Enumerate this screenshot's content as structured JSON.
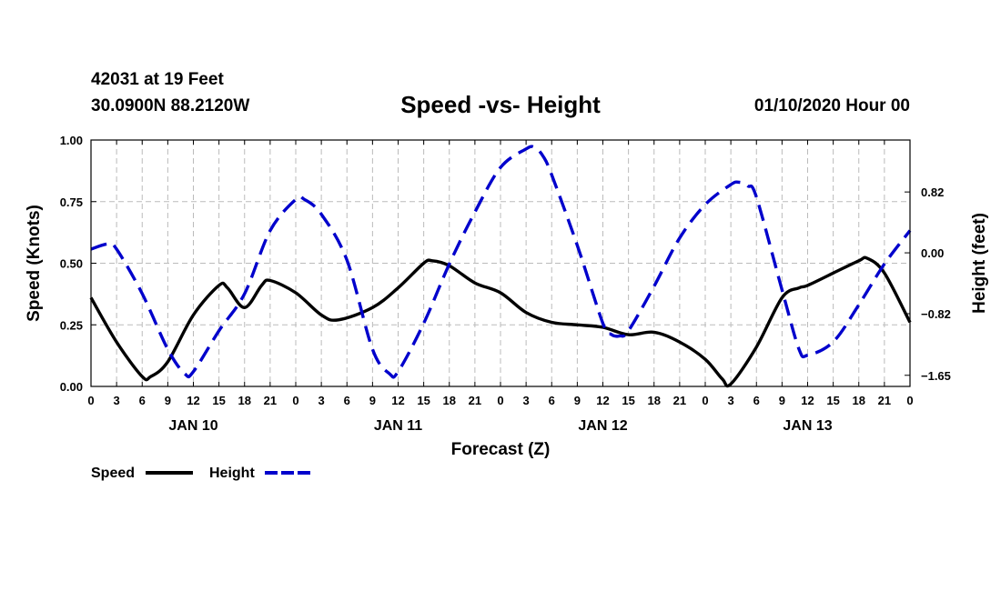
{
  "header": {
    "station": "42031 at 19 Feet",
    "coords": "30.0900N 88.2120W",
    "title": "Speed -vs- Height",
    "date": "01/10/2020 Hour 00"
  },
  "chart_data": {
    "type": "line",
    "title": "Speed -vs- Height",
    "xlabel": "Forecast (Z)",
    "ylabel": "Speed (Knots)",
    "y2label": "Height (feet)",
    "xlim": [
      0,
      96
    ],
    "ylim": [
      0,
      1
    ],
    "y2lim": [
      -1.8,
      1.52
    ],
    "grid": true,
    "x_tick_labels": [
      "0",
      "3",
      "6",
      "9",
      "12",
      "15",
      "18",
      "21",
      "0",
      "3",
      "6",
      "9",
      "12",
      "15",
      "18",
      "21",
      "0",
      "3",
      "6",
      "9",
      "12",
      "15",
      "18",
      "21",
      "0",
      "3",
      "6",
      "9",
      "12",
      "15",
      "18",
      "21",
      "0"
    ],
    "day_labels": [
      {
        "hour": 12,
        "label": "JAN 10"
      },
      {
        "hour": 36,
        "label": "JAN 11"
      },
      {
        "hour": 60,
        "label": "JAN 12"
      },
      {
        "hour": 84,
        "label": "JAN 13"
      }
    ],
    "y_ticks": [
      {
        "value": 0,
        "label": "0.00"
      },
      {
        "value": 0.25,
        "label": "0.25"
      },
      {
        "value": 0.5,
        "label": "0.50"
      },
      {
        "value": 0.75,
        "label": "0.75"
      },
      {
        "value": 1,
        "label": "1.00"
      }
    ],
    "y2_ticks": [
      {
        "value": 0.82,
        "label": "0.82"
      },
      {
        "value": 0,
        "label": "0.00"
      },
      {
        "value": -0.82,
        "label": "−0.82"
      },
      {
        "value": -1.65,
        "label": "−1.65"
      }
    ],
    "series": [
      {
        "name": "Speed",
        "axis": "left",
        "color": "#000000",
        "dash": "solid",
        "x": [
          0,
          3,
          6,
          7,
          9,
          12,
          15,
          16,
          18,
          20,
          21,
          24,
          27,
          29,
          33,
          36,
          39,
          40,
          42,
          45,
          48,
          51,
          54,
          57,
          60,
          63,
          66,
          69,
          72,
          74,
          75,
          78,
          81,
          83,
          84,
          87,
          90,
          91,
          93,
          96
        ],
        "y": [
          0.36,
          0.18,
          0.04,
          0.04,
          0.1,
          0.29,
          0.41,
          0.4,
          0.32,
          0.41,
          0.43,
          0.38,
          0.29,
          0.27,
          0.32,
          0.4,
          0.5,
          0.51,
          0.49,
          0.42,
          0.38,
          0.3,
          0.26,
          0.25,
          0.24,
          0.21,
          0.22,
          0.18,
          0.11,
          0.03,
          0.01,
          0.16,
          0.36,
          0.4,
          0.41,
          0.46,
          0.51,
          0.52,
          0.46,
          0.26
        ]
      },
      {
        "name": "Height",
        "axis": "right",
        "color": "#0000cc",
        "dash": "dashed",
        "x": [
          0,
          2,
          3,
          6,
          9,
          11,
          12,
          15,
          18,
          21,
          24,
          25,
          27,
          30,
          33,
          35,
          36,
          39,
          42,
          45,
          48,
          51,
          52,
          53,
          54,
          57,
          60,
          61,
          62,
          63,
          66,
          69,
          72,
          75,
          76,
          77,
          78,
          81,
          83,
          84,
          87,
          90,
          93,
          96
        ],
        "y": [
          0.05,
          0.12,
          0.05,
          -0.55,
          -1.3,
          -1.63,
          -1.6,
          -1.05,
          -0.55,
          0.3,
          0.72,
          0.72,
          0.52,
          -0.1,
          -1.3,
          -1.63,
          -1.6,
          -0.95,
          -0.15,
          0.55,
          1.15,
          1.4,
          1.42,
          1.3,
          1.05,
          0.1,
          -0.95,
          -1.1,
          -1.12,
          -1.05,
          -0.45,
          0.2,
          0.65,
          0.92,
          0.95,
          0.9,
          0.75,
          -0.5,
          -1.3,
          -1.38,
          -1.2,
          -0.7,
          -0.15,
          0.3
        ]
      }
    ],
    "legend": {
      "position": "bottom-left",
      "entries": [
        {
          "label": "Speed",
          "color": "#000000",
          "dash": "solid"
        },
        {
          "label": "Height",
          "color": "#0000cc",
          "dash": "dashed"
        }
      ]
    }
  }
}
